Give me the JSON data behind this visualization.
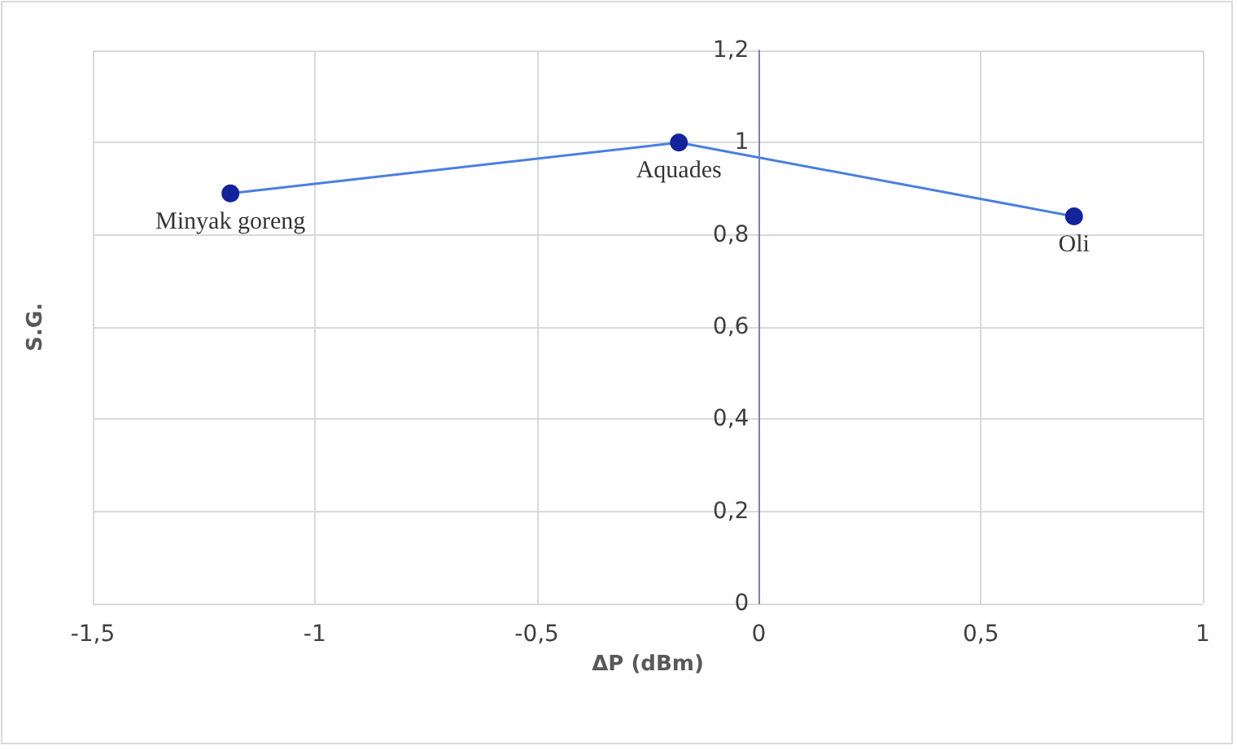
{
  "chart_data": {
    "type": "line",
    "xlabel": "ΔP (dBm)",
    "ylabel": "S.G.",
    "x": [
      -1.19,
      -0.18,
      0.71
    ],
    "series": [
      {
        "color": "#4a7fe0",
        "colors": [
          "#13239a",
          "#13239a",
          "#13239a"
        ],
        "values": [
          0.89,
          1.0,
          0.84
        ]
      }
    ],
    "annotations": [
      {
        "text": "Minyak goreng",
        "x": -1.19,
        "y": 0.89
      },
      {
        "text": "Aquades",
        "x": -0.18,
        "y": 1.0
      },
      {
        "text": "Oli",
        "x": 0.71,
        "y": 0.84
      }
    ],
    "xlim": [
      -1.5,
      1
    ],
    "xticks": [
      {
        "value": -1.5,
        "label": "-1,5"
      },
      {
        "value": -1,
        "label": "-1"
      },
      {
        "value": -0.5,
        "label": "-0,5"
      },
      0,
      {
        "value": 0.5,
        "label": "0,5"
      },
      1
    ],
    "ylim": [
      0,
      1.2
    ],
    "yticks": [
      0,
      {
        "value": 0.2,
        "label": "0,2"
      },
      {
        "value": 0.4,
        "label": "0,4"
      },
      {
        "value": 0.6,
        "label": "0,6"
      },
      {
        "value": 0.8,
        "label": "0,8"
      },
      1,
      {
        "value": 1.2,
        "label": "1,2"
      }
    ],
    "grid": true,
    "marker": "circle",
    "line_style": "solid"
  }
}
